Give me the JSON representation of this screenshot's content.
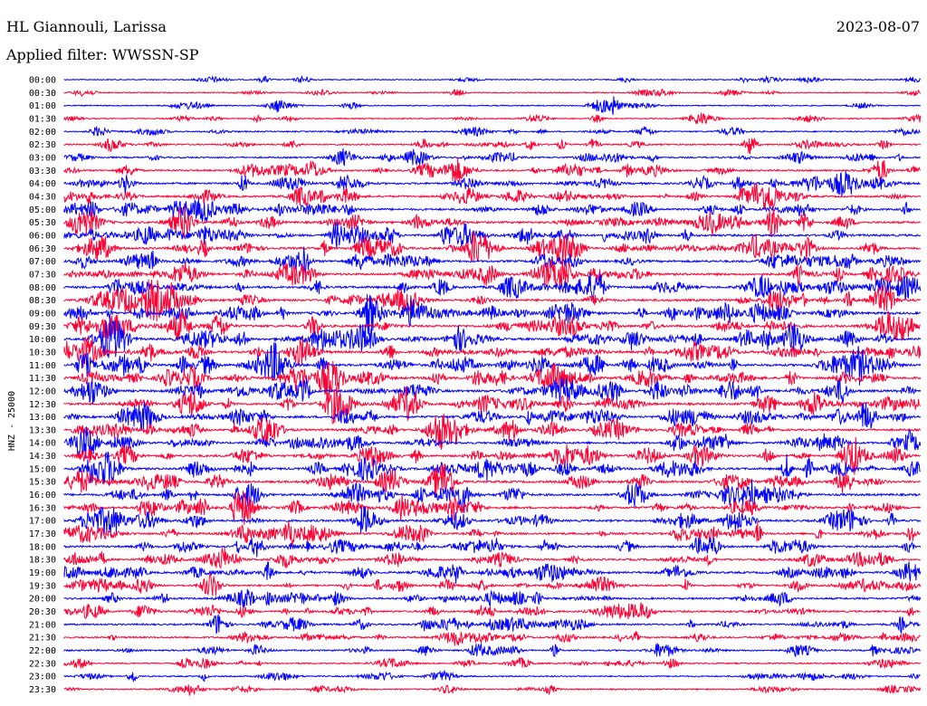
{
  "header": {
    "station": "HL Giannouli, Larissa",
    "date": "2023-08-07",
    "filter": "Applied filter: WWSSN-SP"
  },
  "chart_data": {
    "type": "line",
    "title": "HL Giannouli, Larissa",
    "ylabel": "HNZ - 25000",
    "xlabel": "",
    "grid": false,
    "colors": [
      "#0000ff",
      "#ff0033"
    ],
    "rows": [
      {
        "label": "00:00",
        "color": "#0000ff",
        "level": 0.15
      },
      {
        "label": "00:30",
        "color": "#ff0033",
        "level": 0.15
      },
      {
        "label": "01:00",
        "color": "#0000ff",
        "level": 0.2
      },
      {
        "label": "01:30",
        "color": "#ff0033",
        "level": 0.2
      },
      {
        "label": "02:00",
        "color": "#0000ff",
        "level": 0.3
      },
      {
        "label": "02:30",
        "color": "#ff0033",
        "level": 0.4
      },
      {
        "label": "03:00",
        "color": "#0000ff",
        "level": 0.45
      },
      {
        "label": "03:30",
        "color": "#ff0033",
        "level": 0.55
      },
      {
        "label": "04:00",
        "color": "#0000ff",
        "level": 0.7
      },
      {
        "label": "04:30",
        "color": "#ff0033",
        "level": 0.7
      },
      {
        "label": "05:00",
        "color": "#0000ff",
        "level": 0.75
      },
      {
        "label": "05:30",
        "color": "#ff0033",
        "level": 0.8
      },
      {
        "label": "06:00",
        "color": "#0000ff",
        "level": 0.85
      },
      {
        "label": "06:30",
        "color": "#ff0033",
        "level": 0.85
      },
      {
        "label": "07:00",
        "color": "#0000ff",
        "level": 0.8
      },
      {
        "label": "07:30",
        "color": "#ff0033",
        "level": 0.85
      },
      {
        "label": "08:00",
        "color": "#0000ff",
        "level": 0.9
      },
      {
        "label": "08:30",
        "color": "#ff0033",
        "level": 0.9
      },
      {
        "label": "09:00",
        "color": "#0000ff",
        "level": 0.9
      },
      {
        "label": "09:30",
        "color": "#ff0033",
        "level": 0.9
      },
      {
        "label": "10:00",
        "color": "#0000ff",
        "level": 0.85
      },
      {
        "label": "10:30",
        "color": "#ff0033",
        "level": 0.85
      },
      {
        "label": "11:00",
        "color": "#0000ff",
        "level": 0.95
      },
      {
        "label": "11:30",
        "color": "#ff0033",
        "level": 0.9
      },
      {
        "label": "12:00",
        "color": "#0000ff",
        "level": 0.9
      },
      {
        "label": "12:30",
        "color": "#ff0033",
        "level": 0.85
      },
      {
        "label": "13:00",
        "color": "#0000ff",
        "level": 0.85
      },
      {
        "label": "13:30",
        "color": "#ff0033",
        "level": 0.8
      },
      {
        "label": "14:00",
        "color": "#0000ff",
        "level": 0.8
      },
      {
        "label": "14:30",
        "color": "#ff0033",
        "level": 0.8
      },
      {
        "label": "15:00",
        "color": "#0000ff",
        "level": 0.85
      },
      {
        "label": "15:30",
        "color": "#ff0033",
        "level": 0.8
      },
      {
        "label": "16:00",
        "color": "#0000ff",
        "level": 0.85
      },
      {
        "label": "16:30",
        "color": "#ff0033",
        "level": 0.85
      },
      {
        "label": "17:00",
        "color": "#0000ff",
        "level": 0.8
      },
      {
        "label": "17:30",
        "color": "#ff0033",
        "level": 0.8
      },
      {
        "label": "18:00",
        "color": "#0000ff",
        "level": 0.75
      },
      {
        "label": "18:30",
        "color": "#ff0033",
        "level": 0.7
      },
      {
        "label": "19:00",
        "color": "#0000ff",
        "level": 0.7
      },
      {
        "label": "19:30",
        "color": "#ff0033",
        "level": 0.65
      },
      {
        "label": "20:00",
        "color": "#0000ff",
        "level": 0.65
      },
      {
        "label": "20:30",
        "color": "#ff0033",
        "level": 0.6
      },
      {
        "label": "21:00",
        "color": "#0000ff",
        "level": 0.55
      },
      {
        "label": "21:30",
        "color": "#ff0033",
        "level": 0.5
      },
      {
        "label": "22:00",
        "color": "#0000ff",
        "level": 0.5
      },
      {
        "label": "22:30",
        "color": "#ff0033",
        "level": 0.35
      },
      {
        "label": "23:00",
        "color": "#0000ff",
        "level": 0.3
      },
      {
        "label": "23:30",
        "color": "#ff0033",
        "level": 0.3
      }
    ]
  }
}
